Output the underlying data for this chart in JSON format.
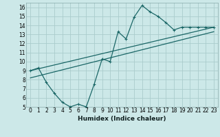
{
  "xlabel": "Humidex (Indice chaleur)",
  "background_color": "#cce8e8",
  "grid_color": "#aacccc",
  "line_color": "#1a6666",
  "xlim": [
    -0.5,
    23.5
  ],
  "ylim": [
    5,
    16.5
  ],
  "xticks": [
    0,
    1,
    2,
    3,
    4,
    5,
    6,
    7,
    8,
    9,
    10,
    11,
    12,
    13,
    14,
    15,
    16,
    17,
    18,
    19,
    20,
    21,
    22,
    23
  ],
  "yticks": [
    5,
    6,
    7,
    8,
    9,
    10,
    11,
    12,
    13,
    14,
    15,
    16
  ],
  "line1_x": [
    0,
    1,
    2,
    3,
    4,
    5,
    6,
    7,
    8,
    9,
    10,
    11,
    12,
    13,
    14,
    15,
    16,
    17,
    18,
    19,
    20,
    21,
    22,
    23
  ],
  "line1_y": [
    9.0,
    9.3,
    7.7,
    6.5,
    5.5,
    5.0,
    5.3,
    5.0,
    7.5,
    10.3,
    10.0,
    13.3,
    12.5,
    14.9,
    16.2,
    15.5,
    15.0,
    14.3,
    13.5,
    13.8,
    13.8,
    13.8,
    13.8,
    13.8
  ],
  "line2_x": [
    0,
    23
  ],
  "line2_y": [
    9.0,
    13.8
  ],
  "line3_x": [
    0,
    23
  ],
  "line3_y": [
    8.2,
    13.3
  ]
}
